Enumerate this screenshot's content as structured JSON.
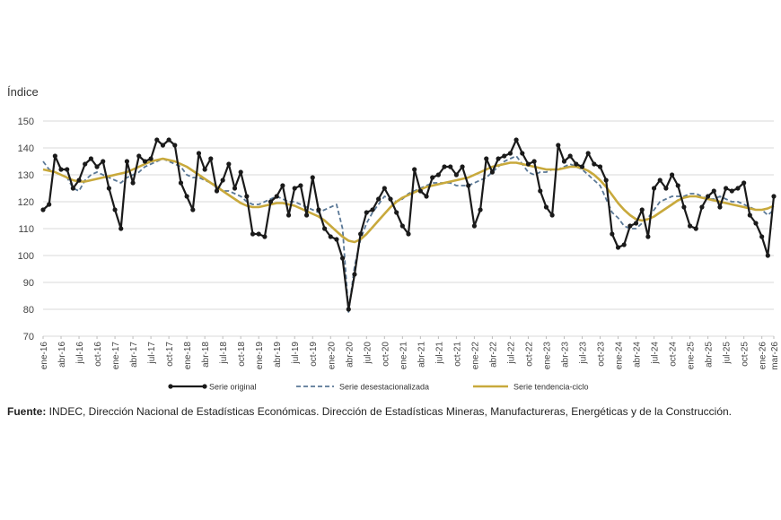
{
  "chart_data": {
    "type": "line",
    "ylabel": "Índice",
    "ylim": [
      70,
      150
    ],
    "yticks": [
      70,
      80,
      90,
      100,
      110,
      120,
      130,
      140,
      150
    ],
    "grid": "horizontal",
    "legend_position": "bottom",
    "x": [
      "ene-16",
      "feb-16",
      "mar-16",
      "abr-16",
      "may-16",
      "jun-16",
      "jul-16",
      "ago-16",
      "sep-16",
      "oct-16",
      "nov-16",
      "dic-16",
      "ene-17",
      "feb-17",
      "mar-17",
      "abr-17",
      "may-17",
      "jun-17",
      "jul-17",
      "ago-17",
      "sep-17",
      "oct-17",
      "nov-17",
      "dic-17",
      "ene-18",
      "feb-18",
      "mar-18",
      "abr-18",
      "may-18",
      "jun-18",
      "jul-18",
      "ago-18",
      "sep-18",
      "oct-18",
      "nov-18",
      "dic-18",
      "ene-19",
      "feb-19",
      "mar-19",
      "abr-19",
      "may-19",
      "jun-19",
      "jul-19",
      "ago-19",
      "sep-19",
      "oct-19",
      "nov-19",
      "dic-19",
      "ene-20",
      "feb-20",
      "mar-20",
      "abr-20",
      "may-20",
      "jun-20",
      "jul-20",
      "ago-20",
      "sep-20",
      "oct-20",
      "nov-20",
      "dic-20",
      "ene-21",
      "feb-21",
      "mar-21",
      "abr-21",
      "may-21",
      "jun-21",
      "jul-21",
      "ago-21",
      "sep-21",
      "oct-21",
      "nov-21",
      "dic-21",
      "ene-22",
      "feb-22",
      "mar-22",
      "abr-22",
      "may-22",
      "jun-22",
      "jul-22",
      "ago-22",
      "sep-22",
      "oct-22",
      "nov-22",
      "dic-22",
      "ene-23",
      "feb-23",
      "mar-23",
      "abr-23",
      "may-23",
      "jun-23",
      "jul-23",
      "ago-23",
      "sep-23",
      "oct-23",
      "nov-23",
      "dic-23",
      "ene-24",
      "feb-24",
      "mar-24",
      "abr-24",
      "may-24",
      "jun-24",
      "jul-24",
      "ago-24",
      "sep-24",
      "oct-24",
      "nov-24",
      "dic-24",
      "ene-25",
      "feb-25",
      "mar-25",
      "abr-25",
      "may-25",
      "jun-25",
      "jul-25",
      "ago-25",
      "sep-25",
      "oct-25",
      "nov-25",
      "dic-25",
      "ene-26",
      "feb-26",
      "mar-26"
    ],
    "xtick_labels": [
      "ene-16",
      "abr-16",
      "jul-16",
      "oct-16",
      "ene-17",
      "abr-17",
      "jul-17",
      "oct-17",
      "ene-18",
      "abr-18",
      "jul-18",
      "oct-18",
      "ene-19",
      "abr-19",
      "jul-19",
      "oct-19",
      "ene-20",
      "abr-20",
      "jul-20",
      "oct-20",
      "ene-21",
      "abr-21",
      "jul-21",
      "oct-21",
      "ene-22",
      "abr-22",
      "jul-22",
      "oct-22",
      "ene-23",
      "abr-23",
      "jul-23",
      "oct-23",
      "ene-24",
      "abr-24",
      "jul-24",
      "oct-24",
      "ene-25",
      "abr-25",
      "jul-25",
      "oct-25",
      "ene-26",
      "mar-26"
    ],
    "series": [
      {
        "name": "Serie original",
        "color": "#1a1a1a",
        "values": [
          117,
          119,
          137,
          132,
          132,
          125,
          128,
          134,
          136,
          133,
          135,
          125,
          117,
          110,
          135,
          127,
          137,
          135,
          136,
          143,
          141,
          143,
          141,
          127,
          122,
          117,
          138,
          132,
          136,
          124,
          128,
          134,
          125,
          131,
          122,
          108,
          108,
          107,
          120,
          122,
          126,
          115,
          125,
          126,
          115,
          129,
          117,
          110,
          107,
          106,
          99,
          80,
          93,
          108,
          116,
          117,
          121,
          125,
          121,
          116,
          111,
          108,
          132,
          124,
          122,
          129,
          130,
          133,
          133,
          130,
          133,
          126,
          111,
          117,
          136,
          131,
          136,
          137,
          138,
          143,
          138,
          134,
          135,
          124,
          118,
          115,
          141,
          135,
          137,
          134,
          133,
          138,
          134,
          133,
          128,
          108,
          103,
          104,
          111,
          112,
          117,
          107,
          125,
          128,
          125,
          130,
          126,
          118,
          111,
          110,
          118,
          122,
          124,
          118,
          125,
          124,
          125,
          127,
          115,
          112,
          107,
          100,
          122
        ]
      },
      {
        "name": "Serie desestacionalizada",
        "color": "#5a7896",
        "values": [
          135,
          132,
          131,
          130,
          129,
          125,
          124,
          128,
          130,
          131,
          130,
          129,
          128,
          127,
          129,
          130,
          131,
          133,
          134,
          135,
          136,
          135,
          134,
          133,
          130,
          129,
          129,
          128,
          127,
          126,
          124,
          124,
          123,
          122,
          120,
          119,
          119,
          120,
          121,
          122,
          121,
          120,
          120,
          119,
          118,
          117,
          116,
          117,
          118,
          119,
          110,
          79,
          96,
          106,
          112,
          116,
          119,
          122,
          121,
          120,
          121,
          123,
          124,
          125,
          126,
          127,
          127,
          127,
          127,
          126,
          126,
          126,
          127,
          128,
          129,
          131,
          133,
          135,
          136,
          137,
          134,
          131,
          130,
          131,
          131,
          132,
          132,
          133,
          134,
          133,
          132,
          130,
          128,
          126,
          121,
          116,
          114,
          111,
          110,
          110,
          112,
          114,
          117,
          120,
          121,
          122,
          122,
          122,
          123,
          123,
          122,
          121,
          121,
          122,
          121,
          120,
          120,
          119,
          118,
          117,
          117,
          115,
          117
        ]
      },
      {
        "name": "Serie tendencia-ciclo",
        "color": "#c8a93c",
        "values": [
          132,
          131.5,
          131,
          130,
          129,
          128,
          127.5,
          127.5,
          128,
          128.5,
          129,
          129.5,
          130,
          130.5,
          131,
          132,
          133,
          134,
          135,
          135.5,
          136,
          135.5,
          135,
          134,
          133,
          131.5,
          130,
          128.5,
          127,
          125.5,
          124,
          122.5,
          121,
          119.5,
          118.5,
          118,
          118,
          118.5,
          119,
          119.5,
          119.5,
          119,
          118.5,
          117.5,
          116.5,
          115.5,
          114.5,
          113,
          111,
          109,
          107,
          105.5,
          105,
          106,
          108,
          110.5,
          113,
          115.5,
          118,
          120,
          121.5,
          122.5,
          123.5,
          124.5,
          125.5,
          126,
          126.5,
          127,
          127.5,
          128,
          128.5,
          129,
          130,
          131,
          132,
          133,
          133.5,
          134,
          134.5,
          134.5,
          134,
          133.5,
          133,
          132.5,
          132,
          132,
          132,
          132.5,
          133,
          133,
          132.5,
          131.5,
          130,
          128,
          125.5,
          122.5,
          119.5,
          117,
          115,
          113.5,
          113,
          113.5,
          114.5,
          116,
          117.5,
          119,
          120.5,
          121.5,
          122,
          122,
          121.5,
          121,
          120.5,
          120,
          119.5,
          119,
          118.5,
          118,
          117.5,
          117,
          117,
          117.5,
          118.5
        ]
      }
    ]
  },
  "source": {
    "label": "Fuente:",
    "text": " INDEC, Dirección Nacional de Estadísticas Económicas. Dirección de Estadísticas Mineras, Manufactureras, Energéticas y de la Construcción."
  }
}
